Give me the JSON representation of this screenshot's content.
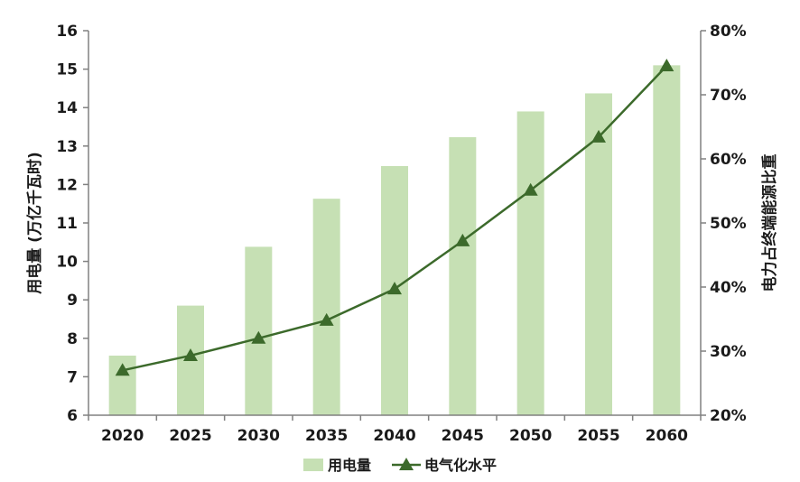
{
  "chart_data": {
    "type": "bar+line",
    "categories": [
      "2020",
      "2025",
      "2030",
      "2035",
      "2040",
      "2045",
      "2050",
      "2055",
      "2060"
    ],
    "series": [
      {
        "name": "用电量",
        "type": "bar",
        "axis": "left",
        "color": "#c6e0b4",
        "values": [
          7.55,
          8.85,
          10.38,
          11.63,
          12.48,
          13.23,
          13.9,
          14.37,
          15.1
        ]
      },
      {
        "name": "电气化水平",
        "type": "line",
        "axis": "right",
        "color": "#3c6a2b",
        "marker": "triangle",
        "values": [
          0.27,
          0.293,
          0.32,
          0.348,
          0.397,
          0.472,
          0.551,
          0.634,
          0.745
        ]
      }
    ],
    "y_left": {
      "label": "用电量 (万亿千瓦时)",
      "min": 6,
      "max": 16,
      "step": 1,
      "ticks": [
        "6",
        "7",
        "8",
        "9",
        "10",
        "11",
        "12",
        "13",
        "14",
        "15",
        "16"
      ]
    },
    "y_right": {
      "label": "电力占终端能源比重",
      "min": 0.2,
      "max": 0.8,
      "step": 0.1,
      "ticks": [
        "20%",
        "30%",
        "40%",
        "50%",
        "60%",
        "70%",
        "80%"
      ]
    },
    "legend": {
      "position": "bottom",
      "items": [
        "用电量",
        "电气化水平"
      ]
    },
    "grid": false
  }
}
